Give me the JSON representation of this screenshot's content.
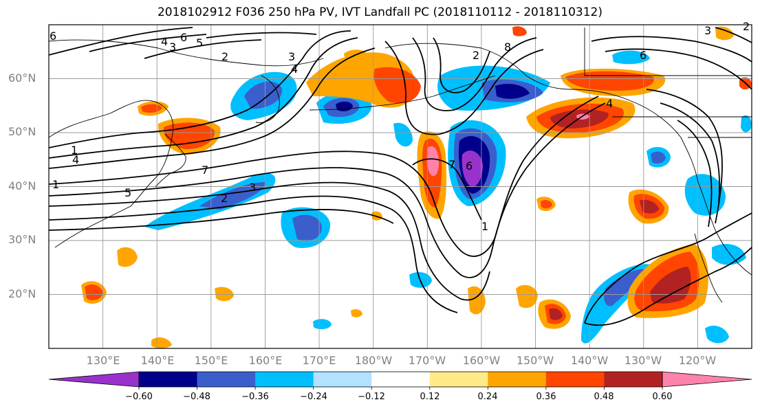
{
  "title": "2018102912 F036 250 hPa PV, IVT Landfall PC (2018110112 - 2018110312)",
  "lat_labels": [
    "60°N",
    "50°N",
    "40°N",
    "30°N",
    "20°N"
  ],
  "lon_labels": [
    "130°E",
    "140°E",
    "150°E",
    "160°E",
    "170°E",
    "180°W",
    "170°W",
    "160°W",
    "150°W",
    "140°W",
    "130°W",
    "120°W"
  ],
  "colorbar": {
    "ticks": [
      "−0.60",
      "−0.48",
      "−0.36",
      "−0.24",
      "−0.12",
      "0.12",
      "0.24",
      "0.36",
      "0.48",
      "0.60"
    ],
    "colors": [
      "#9932cc",
      "#00008b",
      "#3a5fcd",
      "#00bfff",
      "#b2e2ff",
      "#ffffff",
      "#ffea8a",
      "#ffa500",
      "#ff4500",
      "#b22222",
      "#ff82ab"
    ]
  },
  "contour_labels": [
    "6",
    "5",
    "4",
    "3",
    "2",
    "1",
    "7",
    "8",
    "4",
    "3",
    "2",
    "1",
    "6",
    "7",
    "6",
    "5",
    "4",
    "3",
    "2",
    "3",
    "2",
    "1",
    "6",
    "4"
  ],
  "extent": {
    "lon_min": 120,
    "lon_max": 250,
    "lat_min": 10,
    "lat_max": 70
  }
}
